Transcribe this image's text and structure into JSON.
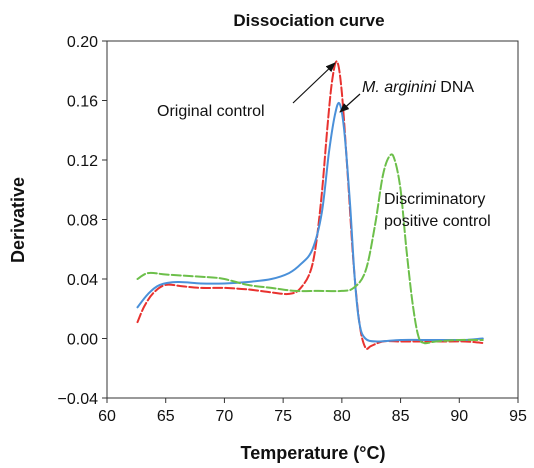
{
  "chart_data": {
    "type": "line",
    "title": "Dissociation curve",
    "xlabel": "Temperature (°C)",
    "ylabel": "Derivative",
    "xlim": [
      60,
      95
    ],
    "ylim": [
      -0.04,
      0.2
    ],
    "x_ticks": [
      60,
      65,
      70,
      75,
      80,
      85,
      90,
      95
    ],
    "x_tick_labels": [
      "60",
      "65",
      "70",
      "75",
      "80",
      "85",
      "90",
      "95"
    ],
    "y_ticks": [
      -0.04,
      0.0,
      0.04,
      0.08,
      0.12,
      0.16,
      0.2
    ],
    "y_tick_labels": [
      "−0.04",
      "0.00",
      "0.04",
      "0.08",
      "0.12",
      "0.16",
      "0.20"
    ],
    "grid": false,
    "legend": "none",
    "series": [
      {
        "color": "#e8322f",
        "dash": true,
        "points": [
          [
            62.6,
            0.011
          ],
          [
            63.2,
            0.022
          ],
          [
            64.0,
            0.031
          ],
          [
            65.0,
            0.036
          ],
          [
            66.5,
            0.035
          ],
          [
            68.0,
            0.034
          ],
          [
            70.0,
            0.034
          ],
          [
            72.0,
            0.033
          ],
          [
            74.0,
            0.031
          ],
          [
            75.5,
            0.03
          ],
          [
            76.5,
            0.034
          ],
          [
            77.5,
            0.05
          ],
          [
            78.2,
            0.09
          ],
          [
            78.8,
            0.145
          ],
          [
            79.2,
            0.175
          ],
          [
            79.6,
            0.186
          ],
          [
            80.0,
            0.165
          ],
          [
            80.5,
            0.11
          ],
          [
            81.0,
            0.05
          ],
          [
            81.5,
            0.01
          ],
          [
            82.0,
            -0.006
          ],
          [
            82.5,
            -0.005
          ],
          [
            83.5,
            -0.002
          ],
          [
            85.0,
            -0.002
          ],
          [
            87.0,
            -0.002
          ],
          [
            89.0,
            -0.002
          ],
          [
            90.5,
            -0.002
          ],
          [
            92.0,
            -0.003
          ]
        ]
      },
      {
        "color": "#4a90d9",
        "dash": false,
        "points": [
          [
            62.6,
            0.021
          ],
          [
            63.5,
            0.03
          ],
          [
            64.5,
            0.036
          ],
          [
            66.0,
            0.038
          ],
          [
            68.0,
            0.037
          ],
          [
            70.0,
            0.037
          ],
          [
            72.0,
            0.038
          ],
          [
            74.0,
            0.04
          ],
          [
            75.5,
            0.044
          ],
          [
            76.5,
            0.05
          ],
          [
            77.5,
            0.06
          ],
          [
            78.3,
            0.085
          ],
          [
            78.9,
            0.125
          ],
          [
            79.4,
            0.15
          ],
          [
            79.8,
            0.158
          ],
          [
            80.2,
            0.14
          ],
          [
            80.7,
            0.09
          ],
          [
            81.1,
            0.04
          ],
          [
            81.5,
            0.01
          ],
          [
            82.0,
            0.0
          ],
          [
            83.0,
            -0.002
          ],
          [
            85.0,
            -0.001
          ],
          [
            87.0,
            -0.001
          ],
          [
            89.0,
            -0.001
          ],
          [
            90.5,
            -0.001
          ],
          [
            92.0,
            0.0
          ]
        ]
      },
      {
        "color": "#6cbf4a",
        "dash": true,
        "points": [
          [
            62.6,
            0.04
          ],
          [
            63.5,
            0.044
          ],
          [
            65.0,
            0.043
          ],
          [
            67.0,
            0.042
          ],
          [
            69.0,
            0.041
          ],
          [
            70.0,
            0.04
          ],
          [
            72.0,
            0.036
          ],
          [
            74.0,
            0.034
          ],
          [
            76.0,
            0.032
          ],
          [
            78.0,
            0.032
          ],
          [
            80.0,
            0.032
          ],
          [
            81.0,
            0.034
          ],
          [
            82.0,
            0.045
          ],
          [
            82.8,
            0.075
          ],
          [
            83.5,
            0.11
          ],
          [
            84.1,
            0.123
          ],
          [
            84.5,
            0.12
          ],
          [
            85.0,
            0.1
          ],
          [
            85.5,
            0.06
          ],
          [
            86.0,
            0.025
          ],
          [
            86.5,
            0.002
          ],
          [
            87.0,
            -0.003
          ],
          [
            88.0,
            -0.002
          ],
          [
            90.0,
            -0.001
          ],
          [
            92.0,
            -0.001
          ]
        ]
      }
    ],
    "annotations": [
      {
        "text": "Original control",
        "arrow_to": [
          79.4,
          0.184
        ]
      },
      {
        "prefix": "M. arginini",
        "suffix": " DNA",
        "arrow_to": [
          79.6,
          0.152
        ]
      },
      {
        "lines": [
          "Discriminatory",
          "positive control"
        ]
      }
    ]
  }
}
